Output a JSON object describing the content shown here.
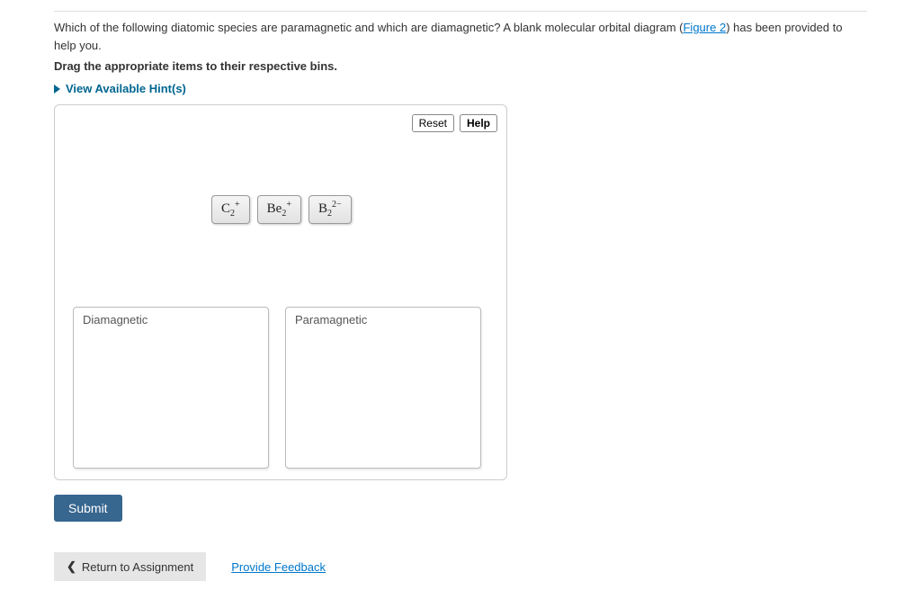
{
  "question": {
    "text_before_link": "Which of the following diatomic species are paramagnetic and which are diamagnetic? A blank molecular orbital diagram (",
    "link_text": "Figure 2",
    "text_after_link": ") has been provided to help you.",
    "instruction": "Drag the appropriate items to their respective bins."
  },
  "hints": {
    "toggle_label": "View Available Hint(s)"
  },
  "workarea": {
    "reset_label": "Reset",
    "help_label": "Help",
    "items": [
      {
        "base": "C",
        "sub": "2",
        "sup": "+"
      },
      {
        "base": "Be",
        "sub": "2",
        "sup": "+"
      },
      {
        "base": "B",
        "sub": "2",
        "sup": "2−"
      }
    ],
    "bins": [
      {
        "label": "Diamagnetic"
      },
      {
        "label": "Paramagnetic"
      }
    ]
  },
  "actions": {
    "submit_label": "Submit"
  },
  "footer": {
    "return_label": "Return to Assignment",
    "feedback_label": "Provide Feedback"
  }
}
